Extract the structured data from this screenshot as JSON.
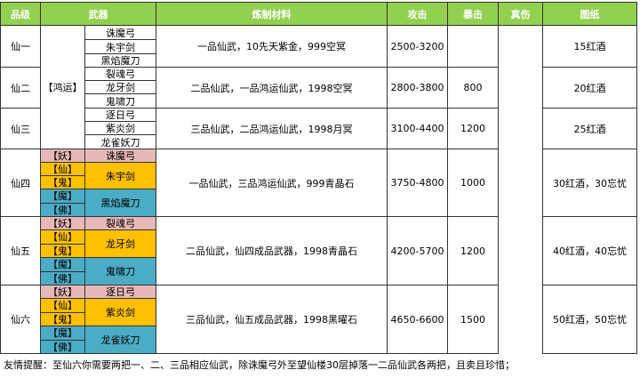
{
  "header": {
    "columns": [
      "品级",
      "武器",
      "炼制材料",
      "攻击",
      "暴击",
      "真伤",
      "图纸"
    ]
  },
  "table": {
    "rows": [
      {
        "grade": "仙一",
        "tag": "【鸿运】",
        "weapons": [
          {
            "name": "诛魔弓"
          },
          {
            "name": "朱宇剑"
          },
          {
            "name": "黑焰魔刀"
          }
        ],
        "materials": "一品仙武，10先天紫金，999空冥",
        "attack": "2500-3200",
        "crit": 500,
        "true_damage": 0,
        "blueprint": "15红酒"
      },
      {
        "grade": "仙二",
        "weapons": [
          {
            "name": "裂魂弓"
          },
          {
            "name": "龙牙剑"
          },
          {
            "name": "鬼啸刀"
          }
        ],
        "materials": "二品仙武，一品鸿运仙武，1998空冥",
        "attack": "2800-3800",
        "crit": 800,
        "blueprint": "20红酒"
      },
      {
        "grade": "仙三",
        "weapons": [
          {
            "name": "逐日弓"
          },
          {
            "name": "紫炎剑"
          },
          {
            "name": "龙雀妖刀"
          }
        ],
        "materials": "三品仙武，二品鸿运仙武，1998月冥",
        "attack": "3100-4400",
        "crit": 1200,
        "blueprint": "25红酒"
      },
      {
        "grade": "仙四",
        "weapons": [
          {
            "tags": [
              "【妖】"
            ],
            "name": "诛魔弓"
          },
          {
            "tags": [
              "【仙】",
              "【鬼】"
            ],
            "name": "朱宇剑"
          },
          {
            "tags": [
              "【魔】",
              "【佛】"
            ],
            "name": "黑焰魔刀"
          }
        ],
        "materials": "一品仙武，三品鸿运仙武，999青晶石",
        "attack": "3750-4800",
        "crit": 500,
        "true_damage": 1000,
        "blueprint": "30红酒，30忘忧"
      },
      {
        "grade": "仙五",
        "weapons": [
          {
            "tags": [
              "【妖】"
            ],
            "name": "裂魂弓"
          },
          {
            "tags": [
              "【仙】",
              "【鬼】"
            ],
            "name": "龙牙剑"
          },
          {
            "tags": [
              "【魔】",
              "【佛】"
            ],
            "name": "鬼啸刀"
          }
        ],
        "materials": "二品仙武，仙四成品武器，1998青晶石",
        "attack": "4200-5700",
        "crit": 800,
        "true_damage": 1200,
        "blueprint": "40红酒，40忘忧"
      },
      {
        "grade": "仙六",
        "weapons": [
          {
            "tags": [
              "【妖】"
            ],
            "name": "逐日弓"
          },
          {
            "tags": [
              "【仙】",
              "【鬼】"
            ],
            "name": "紫炎剑"
          },
          {
            "tags": [
              "【魔】",
              "【佛】"
            ],
            "name": "龙雀妖刀"
          }
        ],
        "materials": "三品仙武，仙五成品武器，1998黑曜石",
        "attack": "4650-6600",
        "crit": 1200,
        "true_damage": 1500,
        "blueprint": "50红酒，50忘忧"
      }
    ]
  },
  "footer": "友情提醒：至仙六你需要两把一、二、三品相应仙武，除诛魔弓外至望仙楼30层掉落一二品仙武各两把，且卖且珍惜；"
}
